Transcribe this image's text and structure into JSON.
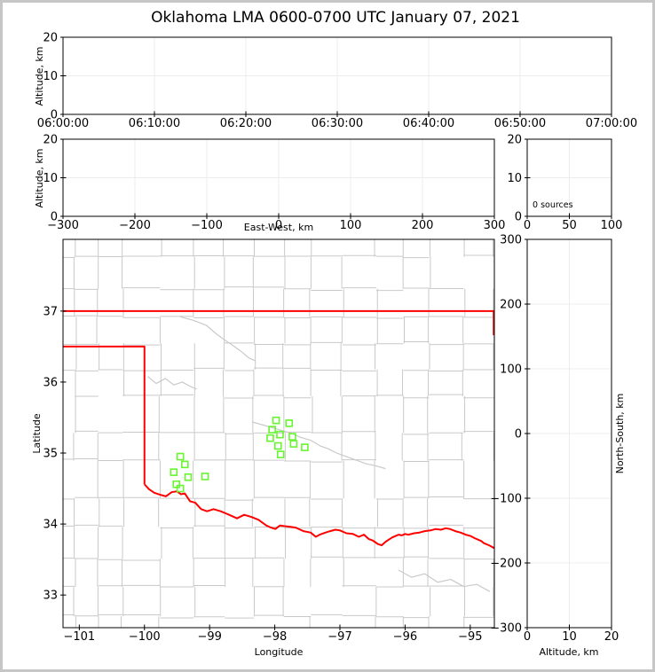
{
  "title": "Oklahoma LMA 0600-0700 UTC January 07, 2021",
  "colors": {
    "state_border": "#ff0000",
    "county_line": "#c9c9c9",
    "station_marker": "#66f52e",
    "gridline": "#ececec",
    "spine": "#000000",
    "figure_frame": "#c6c6c6",
    "background": "#ffffff"
  },
  "chart_data": [
    {
      "id": "time_height",
      "type": "scatter",
      "xlabel": "",
      "ylabel": "Altitude, km",
      "xlim": [
        0,
        60
      ],
      "ylim": [
        0,
        20
      ],
      "xticks": {
        "values": [
          0,
          10,
          20,
          30,
          40,
          50,
          60
        ],
        "labels": [
          "06:00:00",
          "06:10:00",
          "06:20:00",
          "06:30:00",
          "06:40:00",
          "06:50:00",
          "07:00:00"
        ]
      },
      "yticks": {
        "values": [
          0,
          10,
          20
        ],
        "labels": [
          "0",
          "10",
          "20"
        ]
      },
      "grid": true,
      "points": []
    },
    {
      "id": "ew_height",
      "type": "scatter",
      "xlabel": "East-West, km",
      "ylabel": "Altitude, km",
      "xlim": [
        -300,
        300
      ],
      "ylim": [
        0,
        20
      ],
      "xticks": {
        "values": [
          -300,
          -200,
          -100,
          0,
          100,
          200,
          300
        ],
        "labels": [
          "−300",
          "−200",
          "−100",
          "0",
          "100",
          "200",
          "300"
        ]
      },
      "yticks": {
        "values": [
          0,
          10,
          20
        ],
        "labels": [
          "0",
          "10",
          "20"
        ]
      },
      "grid": true,
      "points": []
    },
    {
      "id": "count_height",
      "type": "scatter",
      "xlabel": "",
      "ylabel": "",
      "xlim": [
        0,
        100
      ],
      "ylim": [
        0,
        20
      ],
      "xticks": {
        "values": [
          0,
          50,
          100
        ],
        "labels": [
          "0",
          "50",
          "100"
        ]
      },
      "yticks": {
        "values": [
          0,
          10,
          20
        ],
        "labels": [
          "0",
          "10",
          "20"
        ]
      },
      "grid": true,
      "annotation": "0 sources",
      "points": []
    },
    {
      "id": "plan_view",
      "type": "scatter",
      "xlabel": "Longitude",
      "ylabel": "Latitude",
      "xlim": [
        -101.25,
        -94.63
      ],
      "ylim": [
        32.54,
        38.01
      ],
      "xticks": {
        "values": [
          -101,
          -100,
          -99,
          -98,
          -97,
          -96,
          -95
        ],
        "labels": [
          "−101",
          "−100",
          "−99",
          "−98",
          "−97",
          "−96",
          "−95"
        ]
      },
      "yticks": {
        "values": [
          33,
          34,
          35,
          36,
          37
        ],
        "labels": [
          "33",
          "34",
          "35",
          "36",
          "37"
        ]
      },
      "grid": false,
      "stations": [
        [
          -99.45,
          34.95
        ],
        [
          -99.38,
          34.84
        ],
        [
          -99.55,
          34.73
        ],
        [
          -99.33,
          34.66
        ],
        [
          -99.07,
          34.67
        ],
        [
          -99.51,
          34.56
        ],
        [
          -99.45,
          34.5
        ],
        [
          -97.98,
          35.46
        ],
        [
          -97.78,
          35.42
        ],
        [
          -98.04,
          35.33
        ],
        [
          -97.92,
          35.26
        ],
        [
          -98.07,
          35.21
        ],
        [
          -97.73,
          35.23
        ],
        [
          -97.95,
          35.1
        ],
        [
          -97.71,
          35.13
        ],
        [
          -97.54,
          35.08
        ],
        [
          -97.91,
          34.98
        ]
      ],
      "state_border": [
        [
          [
            -101.25,
            37.0
          ],
          [
            -94.64,
            37.0
          ],
          [
            -94.64,
            36.66
          ]
        ],
        [
          [
            -101.25,
            36.5
          ],
          [
            -100.0,
            36.5
          ],
          [
            -100.0,
            34.56
          ]
        ],
        [
          [
            -100.0,
            34.56
          ],
          [
            -99.93,
            34.49
          ],
          [
            -99.85,
            34.44
          ],
          [
            -99.75,
            34.41
          ],
          [
            -99.67,
            34.39
          ],
          [
            -99.58,
            34.45
          ],
          [
            -99.5,
            34.46
          ],
          [
            -99.44,
            34.42
          ],
          [
            -99.38,
            34.43
          ],
          [
            -99.3,
            34.32
          ],
          [
            -99.22,
            34.3
          ],
          [
            -99.13,
            34.21
          ],
          [
            -99.04,
            34.18
          ],
          [
            -98.94,
            34.21
          ],
          [
            -98.83,
            34.18
          ],
          [
            -98.7,
            34.13
          ],
          [
            -98.58,
            34.08
          ],
          [
            -98.47,
            34.13
          ],
          [
            -98.36,
            34.1
          ],
          [
            -98.25,
            34.06
          ],
          [
            -98.13,
            33.98
          ],
          [
            -98.06,
            33.95
          ],
          [
            -97.99,
            33.93
          ],
          [
            -97.92,
            33.98
          ],
          [
            -97.85,
            33.97
          ],
          [
            -97.76,
            33.96
          ],
          [
            -97.68,
            33.95
          ],
          [
            -97.56,
            33.9
          ],
          [
            -97.45,
            33.88
          ],
          [
            -97.37,
            33.82
          ],
          [
            -97.31,
            33.85
          ],
          [
            -97.22,
            33.88
          ],
          [
            -97.15,
            33.9
          ],
          [
            -97.07,
            33.92
          ],
          [
            -97.0,
            33.91
          ],
          [
            -96.9,
            33.87
          ],
          [
            -96.8,
            33.86
          ],
          [
            -96.71,
            33.82
          ],
          [
            -96.63,
            33.85
          ],
          [
            -96.56,
            33.79
          ],
          [
            -96.5,
            33.77
          ],
          [
            -96.42,
            33.72
          ],
          [
            -96.36,
            33.7
          ],
          [
            -96.3,
            33.75
          ],
          [
            -96.25,
            33.78
          ],
          [
            -96.2,
            33.81
          ],
          [
            -96.15,
            33.83
          ],
          [
            -96.1,
            33.85
          ],
          [
            -96.05,
            33.84
          ],
          [
            -96.0,
            33.86
          ],
          [
            -95.95,
            33.85
          ],
          [
            -95.86,
            33.87
          ],
          [
            -95.78,
            33.88
          ],
          [
            -95.7,
            33.9
          ],
          [
            -95.61,
            33.91
          ],
          [
            -95.53,
            33.93
          ],
          [
            -95.45,
            33.92
          ],
          [
            -95.38,
            33.94
          ],
          [
            -95.31,
            33.93
          ],
          [
            -95.23,
            33.9
          ],
          [
            -95.15,
            33.88
          ],
          [
            -95.07,
            33.85
          ],
          [
            -94.99,
            33.83
          ],
          [
            -94.93,
            33.8
          ],
          [
            -94.88,
            33.78
          ],
          [
            -94.83,
            33.76
          ],
          [
            -94.79,
            33.73
          ],
          [
            -94.71,
            33.7
          ],
          [
            -94.63,
            33.66
          ]
        ]
      ],
      "rivers": [
        [
          [
            -99.45,
            36.92
          ],
          [
            -99.25,
            36.87
          ],
          [
            -99.05,
            36.8
          ],
          [
            -98.9,
            36.68
          ],
          [
            -98.78,
            36.6
          ],
          [
            -98.62,
            36.5
          ],
          [
            -98.5,
            36.42
          ],
          [
            -98.4,
            36.34
          ],
          [
            -98.3,
            36.3
          ]
        ],
        [
          [
            -99.95,
            36.08
          ],
          [
            -99.82,
            35.98
          ],
          [
            -99.68,
            36.05
          ],
          [
            -99.55,
            35.96
          ],
          [
            -99.42,
            36.0
          ],
          [
            -99.3,
            35.94
          ],
          [
            -99.2,
            35.9
          ]
        ],
        [
          [
            -98.35,
            35.44
          ],
          [
            -98.2,
            35.4
          ],
          [
            -98.05,
            35.36
          ],
          [
            -97.9,
            35.32
          ],
          [
            -97.75,
            35.28
          ],
          [
            -97.6,
            35.22
          ],
          [
            -97.45,
            35.18
          ],
          [
            -97.3,
            35.1
          ],
          [
            -97.18,
            35.06
          ],
          [
            -97.05,
            35.0
          ],
          [
            -96.9,
            34.95
          ],
          [
            -96.75,
            34.9
          ],
          [
            -96.6,
            34.85
          ],
          [
            -96.45,
            34.82
          ],
          [
            -96.3,
            34.78
          ]
        ],
        [
          [
            -96.1,
            33.35
          ],
          [
            -95.9,
            33.25
          ],
          [
            -95.7,
            33.3
          ],
          [
            -95.5,
            33.18
          ],
          [
            -95.3,
            33.22
          ],
          [
            -95.1,
            33.12
          ],
          [
            -94.9,
            33.15
          ],
          [
            -94.7,
            33.05
          ]
        ]
      ],
      "county_seed": 7
    },
    {
      "id": "ns_height",
      "type": "scatter",
      "xlabel": "Altitude, km",
      "ylabel": "North-South, km",
      "xlim": [
        0,
        20
      ],
      "ylim": [
        -300,
        300
      ],
      "xticks": {
        "values": [
          0,
          10,
          20
        ],
        "labels": [
          "0",
          "10",
          "20"
        ]
      },
      "yticks": {
        "values": [
          300,
          200,
          100,
          0,
          -100,
          -200,
          -300
        ],
        "labels": [
          "300",
          "200",
          "100",
          "0",
          "−100",
          "−200",
          "−300"
        ]
      },
      "grid": true,
      "points": []
    }
  ]
}
